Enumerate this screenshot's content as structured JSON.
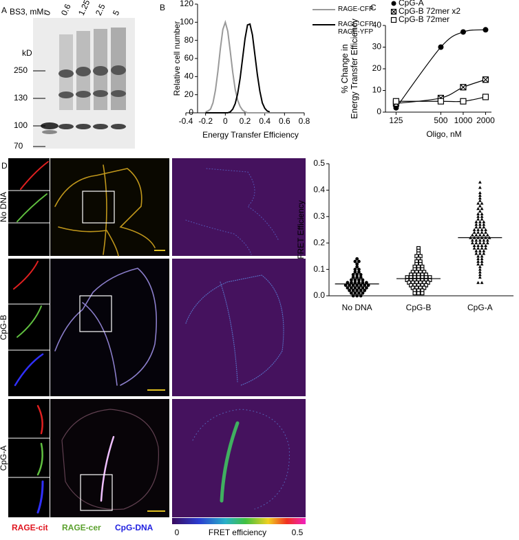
{
  "panel_labels": [
    "A",
    "B",
    "C",
    "D"
  ],
  "gel": {
    "concentration_label": "BS3, mM:",
    "lanes": [
      "0",
      "0.6",
      "1.25",
      "2.5",
      "5"
    ],
    "unit": "kD",
    "markers": [
      "250",
      "130",
      "100",
      "70"
    ]
  },
  "chart_data": [
    {
      "type": "line",
      "xlabel": "Energy Transfer Efficiency",
      "ylabel": "Relative cell number",
      "x": [
        -0.2,
        -0.175,
        -0.15,
        -0.125,
        -0.1,
        -0.075,
        -0.05,
        -0.025,
        0,
        0.025,
        0.05,
        0.075,
        0.1,
        0.125,
        0.15,
        0.175,
        0.2,
        0.225,
        0.25,
        0.275,
        0.3,
        0.325,
        0.35,
        0.375,
        0.4,
        0.425,
        0.45
      ],
      "xlim": [
        -0.4,
        0.8
      ],
      "xticks": [
        -0.4,
        -0.2,
        0,
        0.2,
        0.4,
        0.6,
        0.8
      ],
      "ylim": [
        0,
        120
      ],
      "yticks": [
        0,
        20,
        40,
        60,
        80,
        100,
        120
      ],
      "legend": "upper right",
      "series": [
        {
          "name": "RAGE-CFP",
          "color": "#999999",
          "values": [
            1,
            2,
            4,
            11,
            25,
            46,
            71,
            92,
            100,
            90,
            68,
            45,
            26,
            14,
            7,
            3,
            1,
            0,
            0,
            0,
            0,
            0,
            0,
            0,
            0,
            0,
            0
          ]
        },
        {
          "name": "RAGE-CFP\nRAGE-YFP",
          "color": "#000000",
          "values": [
            0,
            0,
            0,
            0,
            0,
            0,
            0,
            0,
            0,
            0,
            1,
            4,
            10,
            21,
            38,
            60,
            82,
            97,
            98,
            86,
            64,
            42,
            24,
            11,
            5,
            2,
            1
          ]
        }
      ]
    },
    {
      "type": "line",
      "xlabel": "Oligo, nM",
      "ylabel": "% Change in\nEnergy Transfer Efficiency",
      "x": [
        125,
        500,
        1000,
        2000
      ],
      "xscale": "log",
      "xlim": [
        90,
        2400
      ],
      "xticks": [
        125,
        500,
        1000,
        2000
      ],
      "ylim": [
        0,
        40
      ],
      "yticks": [
        0,
        10,
        20,
        30,
        40
      ],
      "legend": "upper left",
      "series": [
        {
          "name": "CpG-A",
          "color": "#000000",
          "marker": "circle",
          "values": [
            2,
            30,
            37,
            38
          ]
        },
        {
          "name": "CpG-B 72mer x2",
          "color": "#000000",
          "marker": "boxed-x",
          "values": [
            4,
            6.5,
            11.5,
            15
          ]
        },
        {
          "name": "CpG-B 72mer",
          "color": "#000000",
          "marker": "square",
          "values": [
            5,
            5,
            5,
            7
          ]
        }
      ]
    },
    {
      "type": "dotplot",
      "ylabel": "FRET Efficiency",
      "categories": [
        "No DNA",
        "CpG-B",
        "CpG-A"
      ],
      "ylim": [
        0,
        0.5
      ],
      "yticks": [
        {
          "value": 0,
          "label": "0.0"
        },
        0.1,
        0.2,
        0.3,
        0.4,
        0.5
      ],
      "color": "#000000",
      "markers": [
        "circle",
        "square",
        "triangle"
      ],
      "medians": [
        0.045,
        0.065,
        0.22
      ],
      "values": [
        [
          0.14,
          0.13,
          0.13,
          0.12,
          0.11,
          0.1,
          0.1,
          0.09,
          0.09,
          0.08,
          0.08,
          0.08,
          0.07,
          0.07,
          0.07,
          0.06,
          0.06,
          0.06,
          0.06,
          0.05,
          0.05,
          0.05,
          0.05,
          0.05,
          0.05,
          0.04,
          0.04,
          0.04,
          0.04,
          0.04,
          0.04,
          0.04,
          0.03,
          0.03,
          0.03,
          0.03,
          0.03,
          0.03,
          0.02,
          0.02,
          0.02,
          0.02,
          0.02,
          0.01,
          0.01,
          0.01,
          0.01,
          0.0,
          0.0,
          0.0
        ],
        [
          0.18,
          0.17,
          0.16,
          0.15,
          0.15,
          0.14,
          0.13,
          0.13,
          0.12,
          0.12,
          0.11,
          0.11,
          0.11,
          0.1,
          0.1,
          0.1,
          0.09,
          0.09,
          0.09,
          0.09,
          0.08,
          0.08,
          0.08,
          0.08,
          0.08,
          0.07,
          0.07,
          0.07,
          0.07,
          0.07,
          0.07,
          0.07,
          0.06,
          0.06,
          0.06,
          0.06,
          0.06,
          0.06,
          0.06,
          0.05,
          0.05,
          0.05,
          0.05,
          0.05,
          0.05,
          0.04,
          0.04,
          0.04,
          0.04,
          0.04,
          0.03,
          0.03,
          0.03,
          0.03,
          0.02,
          0.02,
          0.02,
          0.01,
          0.01,
          0.01
        ],
        [
          0.43,
          0.41,
          0.39,
          0.38,
          0.37,
          0.36,
          0.35,
          0.35,
          0.34,
          0.33,
          0.33,
          0.32,
          0.31,
          0.31,
          0.3,
          0.3,
          0.29,
          0.29,
          0.28,
          0.28,
          0.28,
          0.27,
          0.27,
          0.27,
          0.26,
          0.26,
          0.26,
          0.25,
          0.25,
          0.25,
          0.25,
          0.24,
          0.24,
          0.24,
          0.24,
          0.23,
          0.23,
          0.23,
          0.23,
          0.23,
          0.22,
          0.22,
          0.22,
          0.22,
          0.22,
          0.22,
          0.21,
          0.21,
          0.21,
          0.21,
          0.21,
          0.2,
          0.2,
          0.2,
          0.2,
          0.2,
          0.19,
          0.19,
          0.19,
          0.19,
          0.18,
          0.18,
          0.18,
          0.18,
          0.17,
          0.17,
          0.17,
          0.16,
          0.16,
          0.16,
          0.15,
          0.15,
          0.14,
          0.14,
          0.13,
          0.13,
          0.12,
          0.12,
          0.11,
          0.1,
          0.09,
          0.08,
          0.07,
          0.05,
          0.05
        ]
      ]
    }
  ],
  "microscopy": {
    "conditions": [
      "No DNA",
      "CpG-B",
      "CpG-A"
    ],
    "channels": [
      {
        "name": "RAGE-cit",
        "color": "#e0141e"
      },
      {
        "name": "RAGE-cer",
        "color": "#5aa02c"
      },
      {
        "name": "CpG-DNA",
        "color": "#1e1ee0"
      }
    ],
    "colorbar": {
      "label": "FRET efficiency",
      "min": 0,
      "max": 0.5
    }
  }
}
